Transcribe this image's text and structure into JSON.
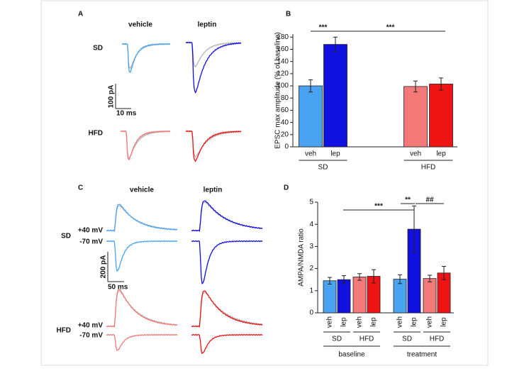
{
  "panels": [
    {
      "letter": "A",
      "columns": [
        "vehicle",
        "leptin"
      ],
      "rows": [
        "SD",
        "HFD"
      ],
      "scale_y": "100 pA",
      "scale_x": "10 ms"
    },
    {
      "letter": "C",
      "columns": [
        "vehicle",
        "leptin"
      ],
      "rows": [
        "SD",
        "HFD"
      ],
      "potentials": [
        "+40 mV",
        "-70 mV",
        "+40 mV",
        "-70 mV"
      ],
      "scale_y": "200 pA",
      "scale_x": "50 ms"
    }
  ],
  "chart_data": [
    {
      "type": "bar",
      "panel_label": "B",
      "y_label": "EPSC max amplitude (% of baseline)",
      "categories": [
        "veh",
        "lep",
        "veh",
        "lep"
      ],
      "groups": [
        "SD",
        "HFD"
      ],
      "values": [
        100,
        168,
        99,
        103
      ],
      "errors": [
        10,
        12,
        9,
        10
      ],
      "colors": [
        "#4aa3f0",
        "#1010e0",
        "#f47a7a",
        "#ee1414"
      ],
      "ylim": [
        0,
        185
      ],
      "yticks": [
        0,
        20,
        40,
        60,
        80,
        100,
        120,
        140,
        160,
        180
      ],
      "annotations": [
        "***",
        "***"
      ]
    },
    {
      "type": "bar",
      "panel_label": "D",
      "y_label": "AMPA/NMDA ratio",
      "categories": [
        "veh",
        "lep",
        "veh",
        "lep",
        "veh",
        "lep",
        "veh",
        "lep"
      ],
      "groups": [
        "SD",
        "HFD",
        "SD",
        "HFD"
      ],
      "supergroups": [
        "baseline",
        "treatment"
      ],
      "values": [
        1.45,
        1.5,
        1.62,
        1.65,
        1.52,
        3.78,
        1.55,
        1.8
      ],
      "errors": [
        0.15,
        0.18,
        0.15,
        0.3,
        0.2,
        1.05,
        0.15,
        0.3
      ],
      "colors": [
        "#4aa3f0",
        "#1010e0",
        "#f47a7a",
        "#ee1414",
        "#4aa3f0",
        "#1010e0",
        "#f47a7a",
        "#ee1414"
      ],
      "ylim": [
        0,
        5
      ],
      "yticks": [
        0,
        1,
        2,
        3,
        4,
        5
      ],
      "annotations": [
        "***",
        "**",
        "##"
      ]
    }
  ]
}
